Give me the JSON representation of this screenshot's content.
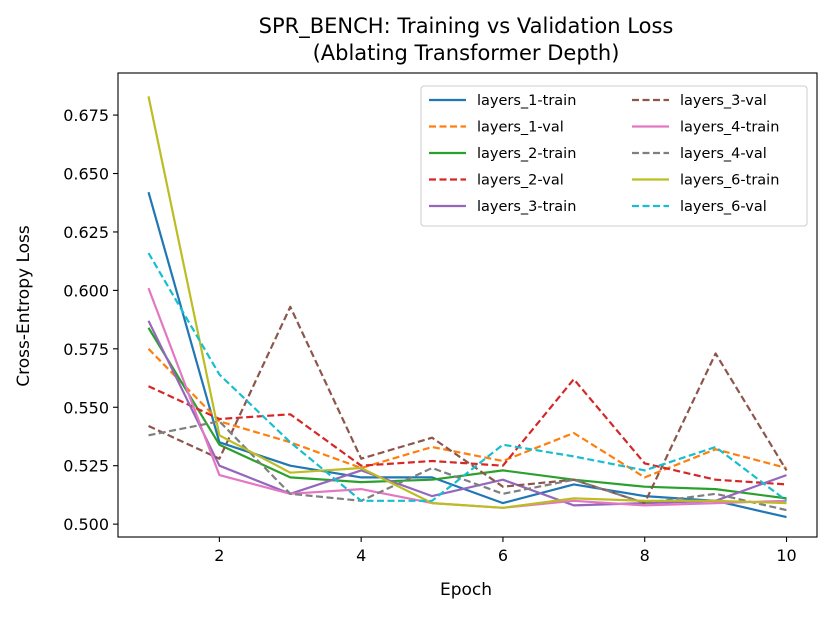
{
  "chart_data": {
    "type": "line",
    "title": "SPR_BENCH: Training vs Validation Loss",
    "subtitle": "(Ablating Transformer Depth)",
    "xlabel": "Epoch",
    "ylabel": "Cross-Entropy Loss",
    "xlim": [
      0.57,
      10.43
    ],
    "ylim": [
      0.4945,
      0.693
    ],
    "xticks": [
      2,
      4,
      6,
      8,
      10
    ],
    "yticks": [
      0.5,
      0.525,
      0.55,
      0.575,
      0.6,
      0.625,
      0.65,
      0.675
    ],
    "ytick_labels": [
      "0.500",
      "0.525",
      "0.550",
      "0.575",
      "0.600",
      "0.625",
      "0.650",
      "0.675"
    ],
    "grid": false,
    "legend_position": "top-right",
    "x": [
      1,
      2,
      3,
      4,
      5,
      6,
      7,
      8,
      9,
      10
    ],
    "series": [
      {
        "name": "layers_1-train",
        "color": "#1f77b4",
        "dash": false,
        "values": [
          0.642,
          0.535,
          0.525,
          0.52,
          0.52,
          0.509,
          0.517,
          0.512,
          0.51,
          0.503
        ]
      },
      {
        "name": "layers_1-val",
        "color": "#ff7f0e",
        "dash": true,
        "values": [
          0.575,
          0.544,
          0.535,
          0.524,
          0.533,
          0.527,
          0.539,
          0.52,
          0.532,
          0.524
        ]
      },
      {
        "name": "layers_2-train",
        "color": "#2ca02c",
        "dash": false,
        "values": [
          0.584,
          0.534,
          0.52,
          0.518,
          0.519,
          0.523,
          0.519,
          0.516,
          0.515,
          0.511
        ]
      },
      {
        "name": "layers_2-val",
        "color": "#d62728",
        "dash": true,
        "values": [
          0.559,
          0.545,
          0.547,
          0.525,
          0.527,
          0.525,
          0.562,
          0.526,
          0.519,
          0.517
        ]
      },
      {
        "name": "layers_3-train",
        "color": "#9467bd",
        "dash": false,
        "values": [
          0.587,
          0.525,
          0.513,
          0.523,
          0.512,
          0.519,
          0.508,
          0.509,
          0.51,
          0.521
        ]
      },
      {
        "name": "layers_3-val",
        "color": "#8c564b",
        "dash": true,
        "values": [
          0.542,
          0.528,
          0.593,
          0.528,
          0.537,
          0.516,
          0.519,
          0.509,
          0.573,
          0.523
        ]
      },
      {
        "name": "layers_4-train",
        "color": "#e377c2",
        "dash": false,
        "values": [
          0.601,
          0.521,
          0.513,
          0.515,
          0.509,
          0.507,
          0.51,
          0.508,
          0.509,
          0.51
        ]
      },
      {
        "name": "layers_4-val",
        "color": "#7f7f7f",
        "dash": true,
        "values": [
          0.538,
          0.544,
          0.513,
          0.51,
          0.524,
          0.513,
          0.519,
          0.509,
          0.513,
          0.506
        ]
      },
      {
        "name": "layers_6-train",
        "color": "#bcbd22",
        "dash": false,
        "values": [
          0.683,
          0.538,
          0.522,
          0.524,
          0.509,
          0.507,
          0.511,
          0.51,
          0.51,
          0.509
        ]
      },
      {
        "name": "layers_6-val",
        "color": "#17becf",
        "dash": true,
        "values": [
          0.616,
          0.564,
          0.535,
          0.51,
          0.51,
          0.534,
          0.529,
          0.523,
          0.533,
          0.51
        ]
      }
    ]
  }
}
